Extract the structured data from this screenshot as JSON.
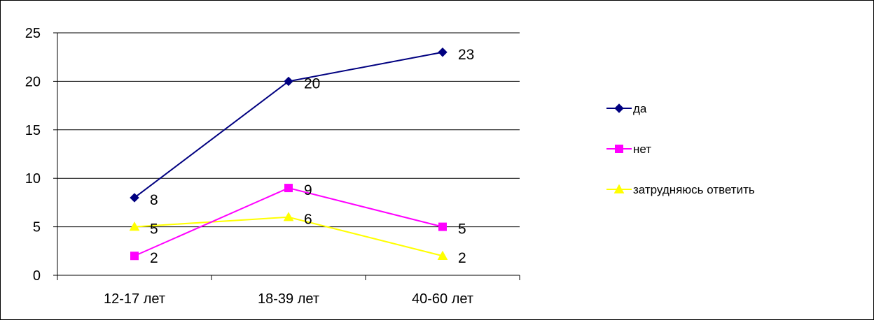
{
  "chart_data": {
    "type": "line",
    "title": "",
    "xlabel": "",
    "ylabel": "",
    "categories": [
      "12-17 лет",
      "18-39 лет",
      "40-60 лет"
    ],
    "ylim": [
      0,
      25
    ],
    "yticks": [
      "0",
      "5",
      "10",
      "15",
      "20",
      "25"
    ],
    "grid": true,
    "legend_position": "right",
    "series": [
      {
        "name": "да",
        "values": [
          8,
          20,
          23
        ],
        "labels": [
          "8",
          "20",
          "23"
        ],
        "color": "#000080",
        "marker": "diamond"
      },
      {
        "name": "нет",
        "values": [
          2,
          9,
          5
        ],
        "labels": [
          "2",
          "9",
          "5"
        ],
        "color": "#FF00FF",
        "marker": "square"
      },
      {
        "name": "затрудняюсь ответить",
        "values": [
          5,
          6,
          2
        ],
        "labels": [
          "5",
          "6",
          "2"
        ],
        "color": "#FFFF00",
        "marker": "triangle"
      }
    ]
  }
}
